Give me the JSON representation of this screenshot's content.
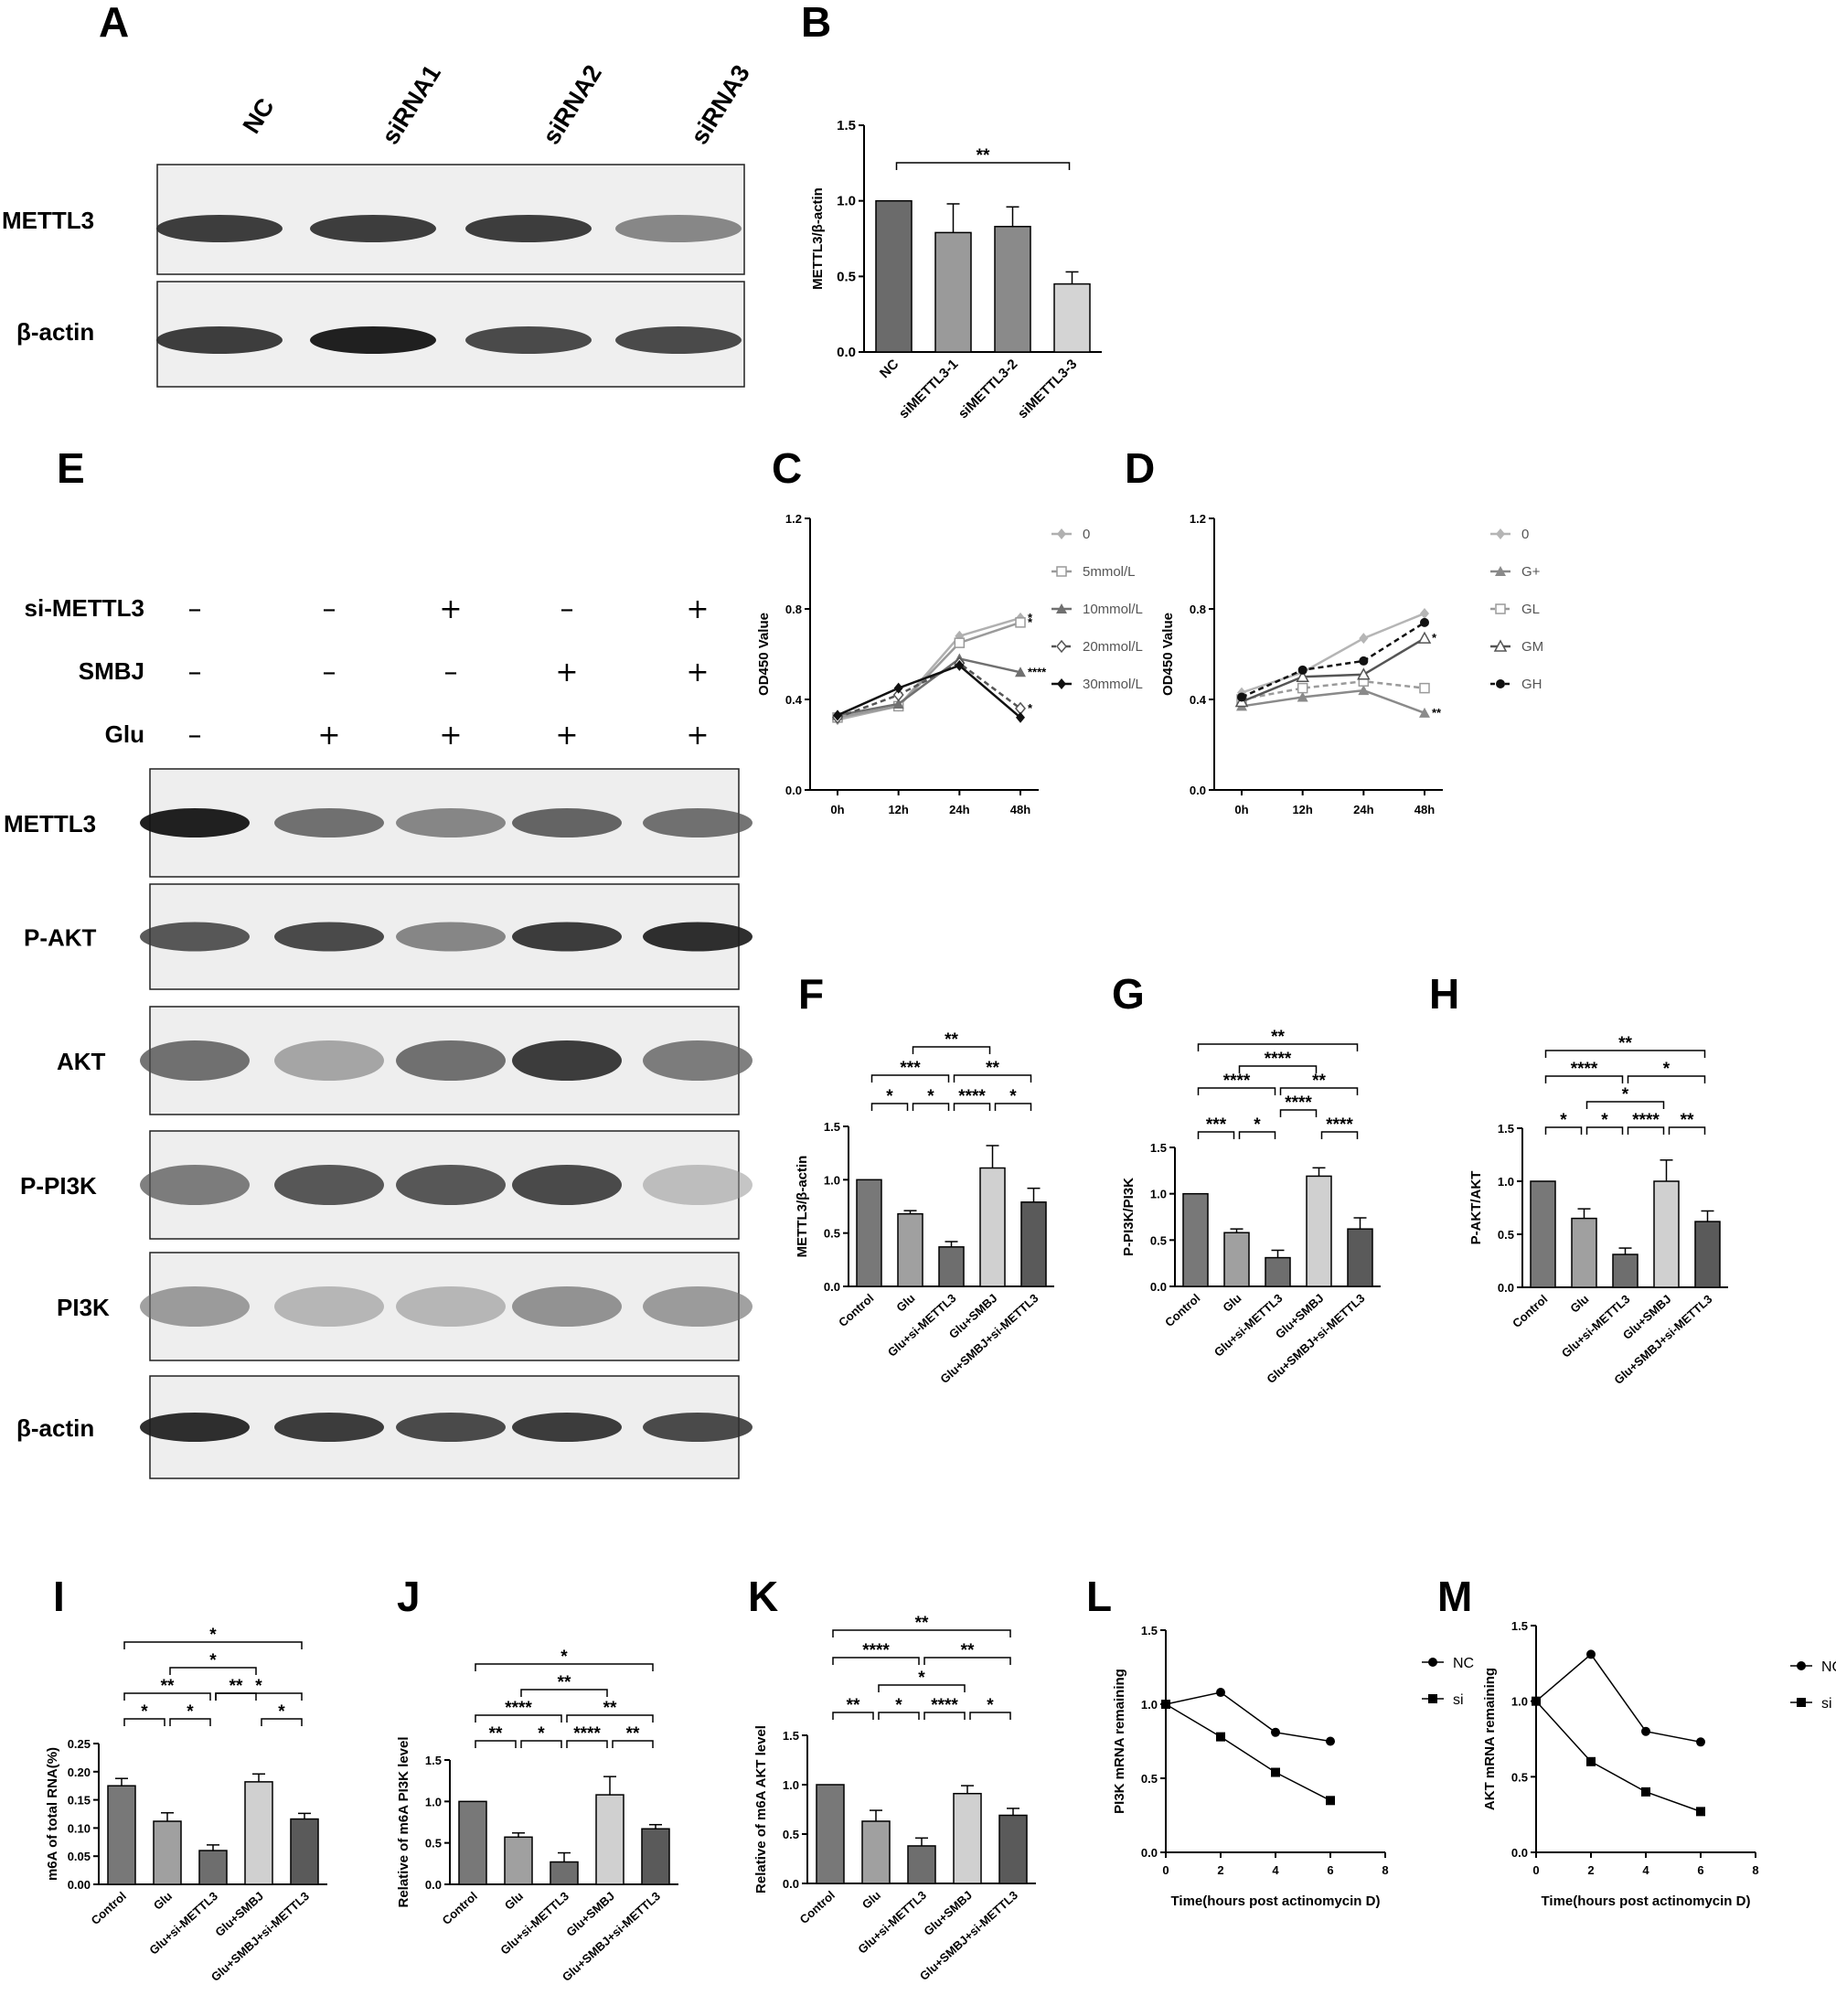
{
  "panels": {
    "A": "A",
    "B": "B",
    "C": "C",
    "D": "D",
    "E": "E",
    "F": "F",
    "G": "G",
    "H": "H",
    "I": "I",
    "J": "J",
    "K": "K",
    "L": "L",
    "M": "M"
  },
  "blot_A": {
    "lanes": [
      "NC",
      "siRNA1",
      "siRNA2",
      "siRNA3"
    ],
    "rows": [
      "METTL3",
      "β-actin"
    ],
    "band_intensity": [
      [
        0.9,
        0.9,
        0.9,
        0.6
      ],
      [
        0.9,
        1.0,
        0.85,
        0.85
      ]
    ]
  },
  "blot_E": {
    "conditions": [
      {
        "name": "si-METTL3",
        "marks": [
          "-",
          "-",
          "+",
          "-",
          "+"
        ]
      },
      {
        "name": "SMBJ",
        "marks": [
          "-",
          "-",
          "-",
          "+",
          "+"
        ]
      },
      {
        "name": "Glu",
        "marks": [
          "-",
          "+",
          "+",
          "+",
          "+"
        ]
      }
    ],
    "rows": [
      "METTL3",
      "P-AKT",
      "AKT",
      "P-PI3K",
      "PI3K",
      "β-actin"
    ],
    "band_intensity": [
      [
        1.0,
        0.7,
        0.6,
        0.75,
        0.7
      ],
      [
        0.8,
        0.85,
        0.6,
        0.9,
        0.95
      ],
      [
        0.7,
        0.45,
        0.7,
        0.9,
        0.65
      ],
      [
        0.65,
        0.8,
        0.8,
        0.85,
        0.3
      ],
      [
        0.5,
        0.35,
        0.35,
        0.55,
        0.5
      ],
      [
        0.95,
        0.9,
        0.85,
        0.9,
        0.85
      ]
    ]
  },
  "chart_data": [
    {
      "panel": "B",
      "type": "bar",
      "categories": [
        "NC",
        "siMETTL3-1",
        "siMETTL3-2",
        "siMETTL3-3"
      ],
      "values": [
        1.0,
        0.79,
        0.83,
        0.45
      ],
      "errors": [
        0,
        0.19,
        0.13,
        0.08
      ],
      "colors": [
        "#6b6b6b",
        "#9a9a9a",
        "#8a8a8a",
        "#d4d4d4"
      ],
      "ylabel": "METTL3/β-actin",
      "ylim": [
        0,
        1.5
      ],
      "yticks": [
        "0.0",
        "0.5",
        "1.0",
        "1.5"
      ],
      "significance": [
        {
          "from": 0,
          "to": 3,
          "label": "**"
        }
      ]
    },
    {
      "panel": "C",
      "type": "line",
      "x": [
        "0h",
        "12h",
        "24h",
        "48h"
      ],
      "ylabel": "OD450 Value",
      "ylim": [
        0,
        1.2
      ],
      "yticks": [
        "0.0",
        "0.4",
        "0.8",
        "1.2"
      ],
      "series": [
        {
          "name": "0",
          "values": [
            0.31,
            0.37,
            0.68,
            0.76
          ],
          "color": "#b0b0b0",
          "marker": "diamond",
          "dashed": false,
          "tag": "*"
        },
        {
          "name": "5mmol/L",
          "values": [
            0.32,
            0.37,
            0.65,
            0.74
          ],
          "color": "#9a9a9a",
          "marker": "square-open",
          "dashed": false,
          "tag": "*"
        },
        {
          "name": "10mmol/L",
          "values": [
            0.33,
            0.38,
            0.58,
            0.52
          ],
          "color": "#707070",
          "marker": "triangle",
          "dashed": false,
          "tag": "****"
        },
        {
          "name": "20mmol/L",
          "values": [
            0.32,
            0.42,
            0.56,
            0.36
          ],
          "color": "#555555",
          "marker": "diamond-open",
          "dashed": true,
          "tag": "*"
        },
        {
          "name": "30mmol/L",
          "values": [
            0.33,
            0.45,
            0.55,
            0.32
          ],
          "color": "#111111",
          "marker": "diamond",
          "dashed": false,
          "tag": ""
        }
      ]
    },
    {
      "panel": "D",
      "type": "line",
      "x": [
        "0h",
        "12h",
        "24h",
        "48h"
      ],
      "ylabel": "OD450 Value",
      "ylim": [
        0,
        1.2
      ],
      "yticks": [
        "0.0",
        "0.4",
        "0.8",
        "1.2"
      ],
      "series": [
        {
          "name": "0",
          "values": [
            0.43,
            0.52,
            0.67,
            0.78
          ],
          "color": "#b5b5b5",
          "marker": "diamond",
          "dashed": false,
          "tag": ""
        },
        {
          "name": "G+",
          "values": [
            0.37,
            0.41,
            0.44,
            0.34
          ],
          "color": "#8a8a8a",
          "marker": "triangle",
          "dashed": false,
          "tag": "**"
        },
        {
          "name": "GL",
          "values": [
            0.4,
            0.45,
            0.48,
            0.45
          ],
          "color": "#9a9a9a",
          "marker": "square-open",
          "dashed": true,
          "tag": ""
        },
        {
          "name": "GM",
          "values": [
            0.39,
            0.5,
            0.51,
            0.67
          ],
          "color": "#555555",
          "marker": "triangle-open",
          "dashed": false,
          "tag": "*"
        },
        {
          "name": "GH",
          "values": [
            0.41,
            0.53,
            0.57,
            0.74
          ],
          "color": "#111111",
          "marker": "circle",
          "dashed": true,
          "tag": ""
        }
      ]
    },
    {
      "panel": "F",
      "type": "bar",
      "categories": [
        "Control",
        "Glu",
        "Glu+si-METTL3",
        "Glu+SMBJ",
        "Glu+SMBJ+si-METTL3"
      ],
      "values": [
        1.0,
        0.68,
        0.37,
        1.11,
        0.79
      ],
      "errors": [
        0,
        0.03,
        0.05,
        0.21,
        0.13
      ],
      "colors": [
        "#787878",
        "#a0a0a0",
        "#6e6e6e",
        "#d0d0d0",
        "#5a5a5a"
      ],
      "ylabel": "METTL3/β-actin",
      "ylim": [
        0,
        1.5
      ],
      "yticks": [
        "0.0",
        "0.5",
        "1.0",
        "1.5"
      ],
      "significance": [
        {
          "from": 0,
          "to": 1,
          "label": "*",
          "level": 0
        },
        {
          "from": 1,
          "to": 2,
          "label": "*",
          "level": 0
        },
        {
          "from": 2,
          "to": 3,
          "label": "****",
          "level": 0
        },
        {
          "from": 3,
          "to": 4,
          "label": "*",
          "level": 0
        },
        {
          "from": 0,
          "to": 2,
          "label": "***",
          "level": 1
        },
        {
          "from": 2,
          "to": 4,
          "label": "**",
          "level": 1
        },
        {
          "from": 1,
          "to": 3,
          "label": "**",
          "level": 2
        }
      ]
    },
    {
      "panel": "G",
      "type": "bar",
      "categories": [
        "Control",
        "Glu",
        "Glu+si-METTL3",
        "Glu+SMBJ",
        "Glu+SMBJ+si-METTL3"
      ],
      "values": [
        1.0,
        0.58,
        0.31,
        1.19,
        0.62
      ],
      "errors": [
        0,
        0.04,
        0.08,
        0.09,
        0.12
      ],
      "colors": [
        "#787878",
        "#a0a0a0",
        "#6e6e6e",
        "#d0d0d0",
        "#5a5a5a"
      ],
      "ylabel": "P-PI3K/PI3K",
      "ylim": [
        0,
        1.5
      ],
      "yticks": [
        "0.0",
        "0.5",
        "1.0",
        "1.5"
      ],
      "significance": [
        {
          "from": 0,
          "to": 1,
          "label": "***",
          "level": 0
        },
        {
          "from": 1,
          "to": 2,
          "label": "*",
          "level": 0
        },
        {
          "from": 3,
          "to": 4,
          "label": "****",
          "level": 0
        },
        {
          "from": 2,
          "to": 3,
          "label": "****",
          "level": 1
        },
        {
          "from": 0,
          "to": 2,
          "label": "****",
          "level": 2
        },
        {
          "from": 2,
          "to": 4,
          "label": "**",
          "level": 2
        },
        {
          "from": 1,
          "to": 3,
          "label": "****",
          "level": 3
        },
        {
          "from": 0,
          "to": 4,
          "label": "**",
          "level": 4
        }
      ]
    },
    {
      "panel": "H",
      "type": "bar",
      "categories": [
        "Control",
        "Glu",
        "Glu+si-METTL3",
        "Glu+SMBJ",
        "Glu+SMBJ+si-METTL3"
      ],
      "values": [
        1.0,
        0.65,
        0.31,
        1.0,
        0.62
      ],
      "errors": [
        0,
        0.09,
        0.06,
        0.2,
        0.1
      ],
      "colors": [
        "#787878",
        "#a0a0a0",
        "#6e6e6e",
        "#d0d0d0",
        "#5a5a5a"
      ],
      "ylabel": "P-AKT/AKT",
      "ylim": [
        0,
        1.5
      ],
      "yticks": [
        "0.0",
        "0.5",
        "1.0",
        "1.5"
      ],
      "significance": [
        {
          "from": 0,
          "to": 1,
          "label": "*",
          "level": 0
        },
        {
          "from": 1,
          "to": 2,
          "label": "*",
          "level": 0
        },
        {
          "from": 2,
          "to": 3,
          "label": "****",
          "level": 0
        },
        {
          "from": 3,
          "to": 4,
          "label": "**",
          "level": 0
        },
        {
          "from": 1,
          "to": 3,
          "label": "*",
          "level": 1
        },
        {
          "from": 0,
          "to": 2,
          "label": "****",
          "level": 2
        },
        {
          "from": 2,
          "to": 4,
          "label": "*",
          "level": 2
        },
        {
          "from": 0,
          "to": 4,
          "label": "**",
          "level": 3
        }
      ]
    },
    {
      "panel": "I",
      "type": "bar",
      "categories": [
        "Control",
        "Glu",
        "Glu+si-METTL3",
        "Glu+SMBJ",
        "Glu+SMBJ+si-METTL3"
      ],
      "values": [
        0.175,
        0.112,
        0.06,
        0.182,
        0.116
      ],
      "errors": [
        0.013,
        0.015,
        0.01,
        0.014,
        0.01
      ],
      "colors": [
        "#787878",
        "#a0a0a0",
        "#6e6e6e",
        "#d0d0d0",
        "#5a5a5a"
      ],
      "ylabel": "m6A of total RNA(%)",
      "ylim": [
        0,
        0.25
      ],
      "yticks": [
        "0.00",
        "0.05",
        "0.10",
        "0.15",
        "0.20",
        "0.25"
      ],
      "significance": [
        {
          "from": 0,
          "to": 1,
          "label": "*",
          "level": 0
        },
        {
          "from": 1,
          "to": 2,
          "label": "*",
          "level": 0
        },
        {
          "from": 3,
          "to": 4,
          "label": "*",
          "level": 0
        },
        {
          "from": 0,
          "to": 2,
          "label": "**",
          "level": 1
        },
        {
          "from": 2,
          "to": 3,
          "label": "**",
          "level": 1
        },
        {
          "from": 2,
          "to": 4,
          "label": "*",
          "level": 1
        },
        {
          "from": 1,
          "to": 3,
          "label": "*",
          "level": 2
        },
        {
          "from": 0,
          "to": 4,
          "label": "*",
          "level": 3
        }
      ]
    },
    {
      "panel": "J",
      "type": "bar",
      "categories": [
        "Control",
        "Glu",
        "Glu+si-METTL3",
        "Glu+SMBJ",
        "Glu+SMBJ+si-METTL3"
      ],
      "values": [
        1.0,
        0.57,
        0.27,
        1.08,
        0.67
      ],
      "errors": [
        0,
        0.05,
        0.11,
        0.22,
        0.05
      ],
      "colors": [
        "#787878",
        "#a0a0a0",
        "#6e6e6e",
        "#d0d0d0",
        "#5a5a5a"
      ],
      "ylabel": "Relative of m6A PI3K level",
      "ylim": [
        0,
        1.5
      ],
      "yticks": [
        "0.0",
        "0.5",
        "1.0",
        "1.5"
      ],
      "significance": [
        {
          "from": 0,
          "to": 1,
          "label": "**",
          "level": 0
        },
        {
          "from": 1,
          "to": 2,
          "label": "*",
          "level": 0
        },
        {
          "from": 2,
          "to": 3,
          "label": "****",
          "level": 0
        },
        {
          "from": 3,
          "to": 4,
          "label": "**",
          "level": 0
        },
        {
          "from": 0,
          "to": 2,
          "label": "****",
          "level": 1
        },
        {
          "from": 2,
          "to": 4,
          "label": "**",
          "level": 1
        },
        {
          "from": 1,
          "to": 3,
          "label": "**",
          "level": 2
        },
        {
          "from": 0,
          "to": 4,
          "label": "*",
          "level": 3
        }
      ]
    },
    {
      "panel": "K",
      "type": "bar",
      "categories": [
        "Control",
        "Glu",
        "Glu+si-METTL3",
        "Glu+SMBJ",
        "Glu+SMBJ+si-METTL3"
      ],
      "values": [
        1.0,
        0.63,
        0.38,
        0.91,
        0.69
      ],
      "errors": [
        0,
        0.11,
        0.08,
        0.08,
        0.07
      ],
      "colors": [
        "#787878",
        "#a0a0a0",
        "#6e6e6e",
        "#d0d0d0",
        "#5a5a5a"
      ],
      "ylabel": "Relative of m6A AKT level",
      "ylim": [
        0,
        1.5
      ],
      "yticks": [
        "0.0",
        "0.5",
        "1.0",
        "1.5"
      ],
      "significance": [
        {
          "from": 0,
          "to": 1,
          "label": "**",
          "level": 0
        },
        {
          "from": 1,
          "to": 2,
          "label": "*",
          "level": 0
        },
        {
          "from": 2,
          "to": 3,
          "label": "****",
          "level": 0
        },
        {
          "from": 3,
          "to": 4,
          "label": "*",
          "level": 0
        },
        {
          "from": 1,
          "to": 3,
          "label": "*",
          "level": 1
        },
        {
          "from": 0,
          "to": 2,
          "label": "****",
          "level": 2
        },
        {
          "from": 2,
          "to": 4,
          "label": "**",
          "level": 2
        },
        {
          "from": 0,
          "to": 4,
          "label": "**",
          "level": 3
        }
      ]
    },
    {
      "panel": "L",
      "type": "line",
      "x": [
        0,
        2,
        4,
        6
      ],
      "xlim": [
        0,
        8
      ],
      "xticks": [
        0,
        2,
        4,
        6,
        8
      ],
      "xlabel": "Time(hours post actinomycin D)",
      "ylabel": "PI3K mRNA remaining",
      "ylim": [
        0,
        1.5
      ],
      "yticks": [
        "0.0",
        "0.5",
        "1.0",
        "1.5"
      ],
      "series": [
        {
          "name": "NC",
          "values": [
            1.0,
            1.08,
            0.81,
            0.75
          ],
          "marker": "circle"
        },
        {
          "name": "si",
          "values": [
            1.0,
            0.78,
            0.54,
            0.35
          ],
          "marker": "square"
        }
      ]
    },
    {
      "panel": "M",
      "type": "line",
      "x": [
        0,
        2,
        4,
        6
      ],
      "xlim": [
        0,
        8
      ],
      "xticks": [
        0,
        2,
        4,
        6,
        8
      ],
      "xlabel": "Time(hours post actinomycin D)",
      "ylabel": "AKT mRNA remaining",
      "ylim": [
        0,
        1.5
      ],
      "yticks": [
        "0.0",
        "0.5",
        "1.0",
        "1.5"
      ],
      "series": [
        {
          "name": "NC",
          "values": [
            1.0,
            1.31,
            0.8,
            0.73
          ],
          "marker": "circle"
        },
        {
          "name": "si",
          "values": [
            1.0,
            0.6,
            0.4,
            0.27
          ],
          "marker": "square"
        }
      ]
    }
  ]
}
